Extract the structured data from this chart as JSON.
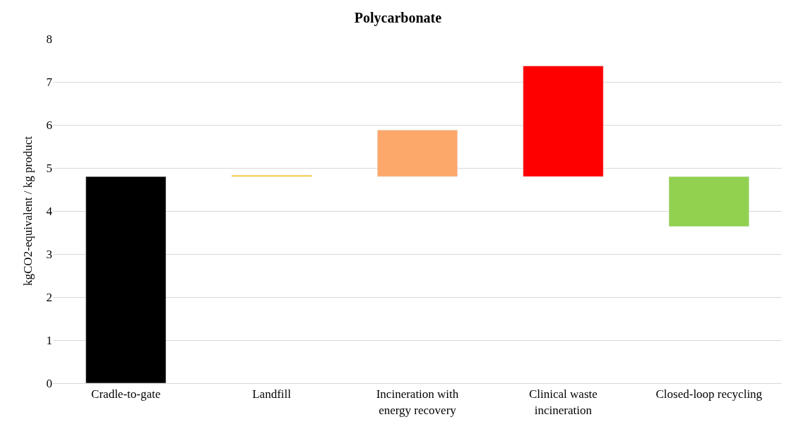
{
  "chart_data": {
    "type": "bar",
    "title": "Polycarbonate",
    "ylabel": "kgCO2-equivalent / kg product",
    "categories": [
      "Cradle-to-gate",
      "Landfill",
      "Incineration with energy recovery",
      "Clinical waste incineration",
      "Closed-loop recycling"
    ],
    "values": [
      4.8,
      0.03,
      1.08,
      2.57,
      1.16
    ],
    "base": [
      0,
      4.8,
      4.8,
      4.8,
      3.64
    ],
    "colors": [
      "#000000",
      "#ffc000",
      "#fba86a",
      "#ff0000",
      "#92d050"
    ],
    "ylim": [
      0,
      8
    ],
    "yticks": [
      0,
      1,
      2,
      3,
      4,
      5,
      6,
      7,
      8
    ],
    "grid": "y"
  }
}
